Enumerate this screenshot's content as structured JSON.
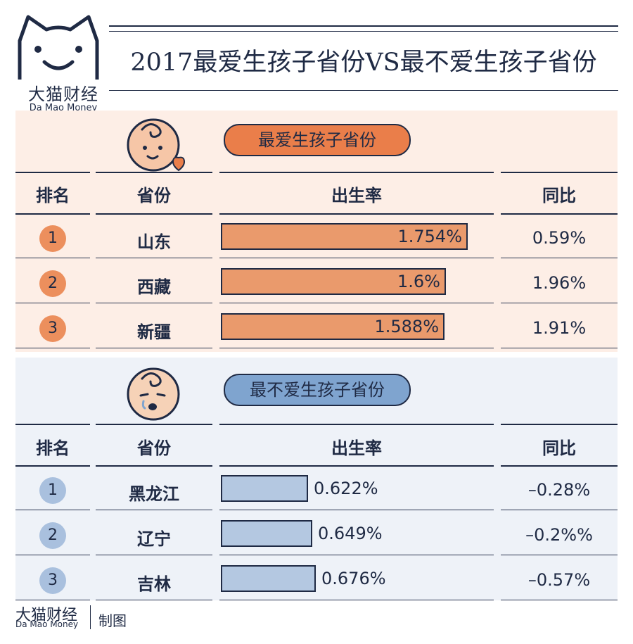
{
  "brand": {
    "name_cn": "大猫财经",
    "name_en": "Da Mao Money"
  },
  "title": "2017最爱生孩子省份VS最不爱生孩子省份",
  "headers": {
    "rank": "排名",
    "province": "省份",
    "birth_rate": "出生率",
    "yoy": "同比"
  },
  "footer": {
    "credit": "制图"
  },
  "colors": {
    "navy": "#1f2a44",
    "orange": "#ea7e4a",
    "blue": "#7fa4cf",
    "top_bg": "#fdeee6",
    "bottom_bg": "#eef2f8"
  },
  "icons": {
    "top_face": "happy-baby-icon",
    "bottom_face": "crying-baby-icon"
  },
  "chart_data": [
    {
      "type": "table",
      "title": "最爱生孩子省份",
      "columns": [
        "排名",
        "省份",
        "出生率",
        "同比"
      ],
      "ranks": [
        "1",
        "2",
        "3"
      ],
      "categories": [
        "山东",
        "西藏",
        "新疆"
      ],
      "values": [
        1.754,
        1.6,
        1.588
      ],
      "labels": [
        "1.754%",
        "1.6%",
        "1.588%"
      ],
      "yoy": [
        "0.59%",
        "1.96%",
        "1.91%"
      ],
      "xlim": [
        0,
        1.95
      ]
    },
    {
      "type": "table",
      "title": "最不爱生孩子省份",
      "columns": [
        "排名",
        "省份",
        "出生率",
        "同比"
      ],
      "ranks": [
        "1",
        "2",
        "3"
      ],
      "categories": [
        "黑龙江",
        "辽宁",
        "吉林"
      ],
      "values": [
        0.622,
        0.649,
        0.676
      ],
      "labels": [
        "0.622%",
        "0.649%",
        "0.676%"
      ],
      "yoy": [
        "–0.28%",
        "–0.2%%",
        "–0.57%"
      ],
      "xlim": [
        0,
        1.95
      ]
    }
  ]
}
